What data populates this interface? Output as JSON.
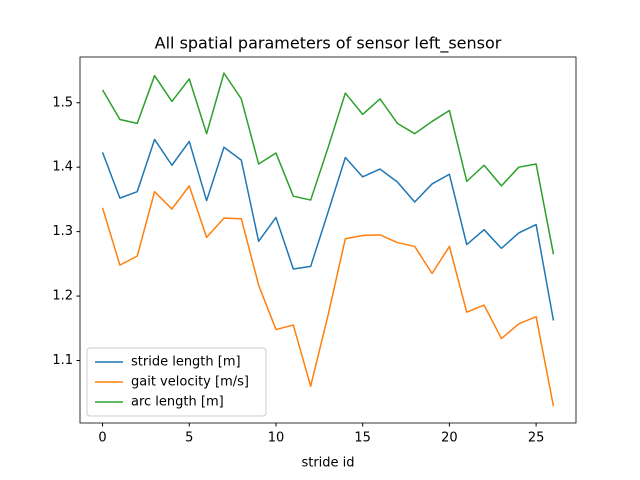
{
  "chart_data": {
    "type": "line",
    "title": "All spatial parameters of sensor left_sensor",
    "x_label": "stride id",
    "x": [
      0,
      1,
      2,
      3,
      4,
      5,
      6,
      7,
      8,
      9,
      10,
      11,
      12,
      13,
      14,
      15,
      16,
      17,
      18,
      19,
      20,
      21,
      22,
      23,
      24,
      25,
      26
    ],
    "series": [
      {
        "name": "stride length [m]",
        "color": "#1f77b4",
        "values": [
          1.423,
          1.352,
          1.362,
          1.443,
          1.403,
          1.44,
          1.348,
          1.431,
          1.411,
          1.285,
          1.322,
          1.242,
          1.246,
          1.33,
          1.415,
          1.385,
          1.397,
          1.377,
          1.346,
          1.374,
          1.389,
          1.28,
          1.303,
          1.274,
          1.298,
          1.311,
          1.162
        ]
      },
      {
        "name": "gait velocity [m/s]",
        "color": "#ff7f0e",
        "values": [
          1.337,
          1.248,
          1.262,
          1.362,
          1.335,
          1.371,
          1.291,
          1.321,
          1.32,
          1.217,
          1.148,
          1.155,
          1.06,
          1.17,
          1.289,
          1.294,
          1.295,
          1.283,
          1.277,
          1.235,
          1.277,
          1.175,
          1.186,
          1.134,
          1.157,
          1.168,
          1.029
        ]
      },
      {
        "name": "arc length [m]",
        "color": "#2ca02c",
        "values": [
          1.52,
          1.474,
          1.468,
          1.542,
          1.502,
          1.537,
          1.452,
          1.546,
          1.506,
          1.405,
          1.422,
          1.355,
          1.349,
          1.43,
          1.515,
          1.482,
          1.506,
          1.468,
          1.452,
          1.471,
          1.488,
          1.378,
          1.403,
          1.371,
          1.4,
          1.405,
          1.265
        ]
      }
    ],
    "xlim": [
      -1.3,
      27.3
    ],
    "ylim": [
      1.003,
      1.571
    ],
    "xticks": [
      0,
      5,
      10,
      15,
      20,
      25
    ],
    "yticks": [
      1.1,
      1.2,
      1.3,
      1.4,
      1.5
    ],
    "grid": false,
    "legend": "lower left"
  }
}
